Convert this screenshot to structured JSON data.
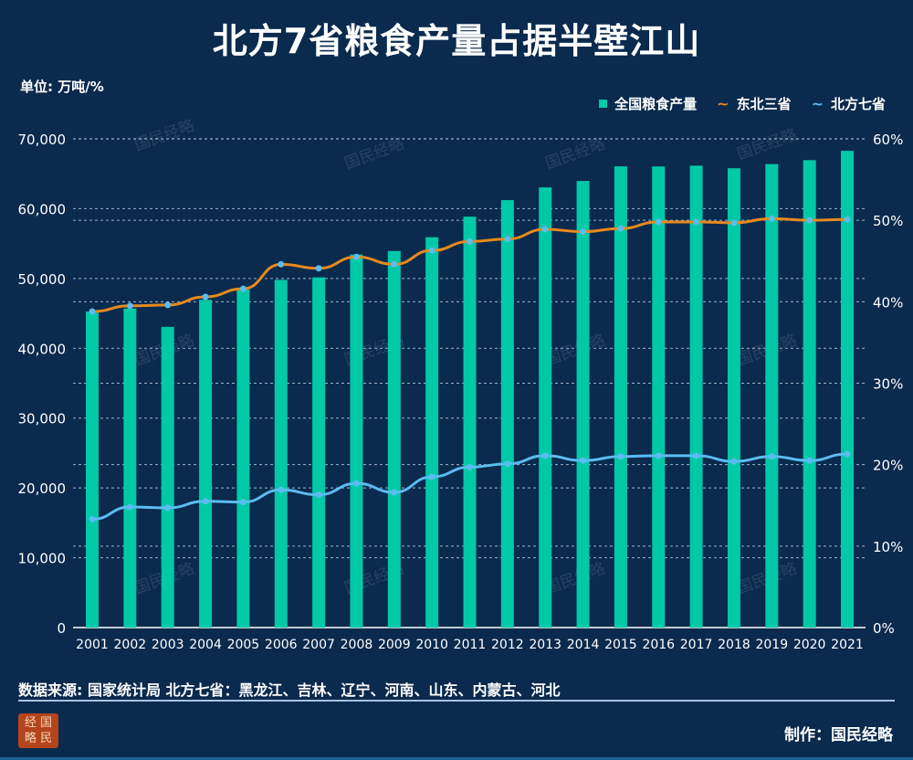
{
  "title": "北方7省粮食产量占据半壁江山",
  "unit_label": "单位: 万吨/%",
  "legend": [
    {
      "label": "全国粮食产量",
      "icon": "square",
      "color": "#00c9a7"
    },
    {
      "label": "东北三省",
      "icon": "wave",
      "color": "#e8891c"
    },
    {
      "label": "北方七省",
      "icon": "wave",
      "color": "#5bbcf0"
    }
  ],
  "watermark": "国民经略",
  "chart_data": {
    "type": "bar+line",
    "categories": [
      "2001",
      "2002",
      "2003",
      "2004",
      "2005",
      "2006",
      "2007",
      "2008",
      "2009",
      "2010",
      "2011",
      "2012",
      "2013",
      "2014",
      "2015",
      "2016",
      "2017",
      "2018",
      "2019",
      "2020",
      "2021"
    ],
    "left_axis": {
      "ylim": [
        0,
        70000
      ],
      "ticks": [
        "0",
        "10,000",
        "20,000",
        "30,000",
        "40,000",
        "50,000",
        "60,000",
        "70,000"
      ]
    },
    "right_axis": {
      "ylim": [
        0,
        60
      ],
      "ticks": [
        "0%",
        "10%",
        "20%",
        "30%",
        "40%",
        "50%",
        "60%"
      ]
    },
    "grid": true,
    "legend_position": "top-right",
    "series": [
      {
        "name": "全国粮食产量",
        "type": "bar",
        "axis": "left",
        "color": "#00c9a7",
        "values": [
          45264,
          45706,
          43070,
          46947,
          48402,
          49804,
          50160,
          53434,
          53941,
          55911,
          58849,
          61223,
          63048,
          63965,
          66060,
          66044,
          66161,
          65789,
          66384,
          66949,
          68285
        ]
      },
      {
        "name": "东北三省",
        "type": "line",
        "axis": "right",
        "color": "#e8891c",
        "values": [
          38.8,
          39.5,
          39.6,
          40.6,
          41.6,
          44.6,
          44.1,
          45.5,
          44.6,
          46.3,
          47.4,
          47.7,
          48.9,
          48.6,
          49.0,
          49.8,
          49.8,
          49.7,
          50.2,
          50.0,
          50.1
        ]
      },
      {
        "name": "北方七省",
        "type": "line",
        "axis": "right",
        "color": "#5bbcf0",
        "values": [
          13.3,
          14.8,
          14.7,
          15.5,
          15.4,
          16.9,
          16.3,
          17.7,
          16.6,
          18.5,
          19.7,
          20.1,
          21.1,
          20.5,
          21.0,
          21.1,
          21.1,
          20.4,
          21.0,
          20.5,
          21.3
        ]
      }
    ]
  },
  "footer": {
    "source": "数据来源: 国家统计局  北方七省：黑龙江、吉林、辽宁、河南、山东、内蒙古、河北",
    "logo_text": "经国略民",
    "maker": "制作：国民经略"
  }
}
